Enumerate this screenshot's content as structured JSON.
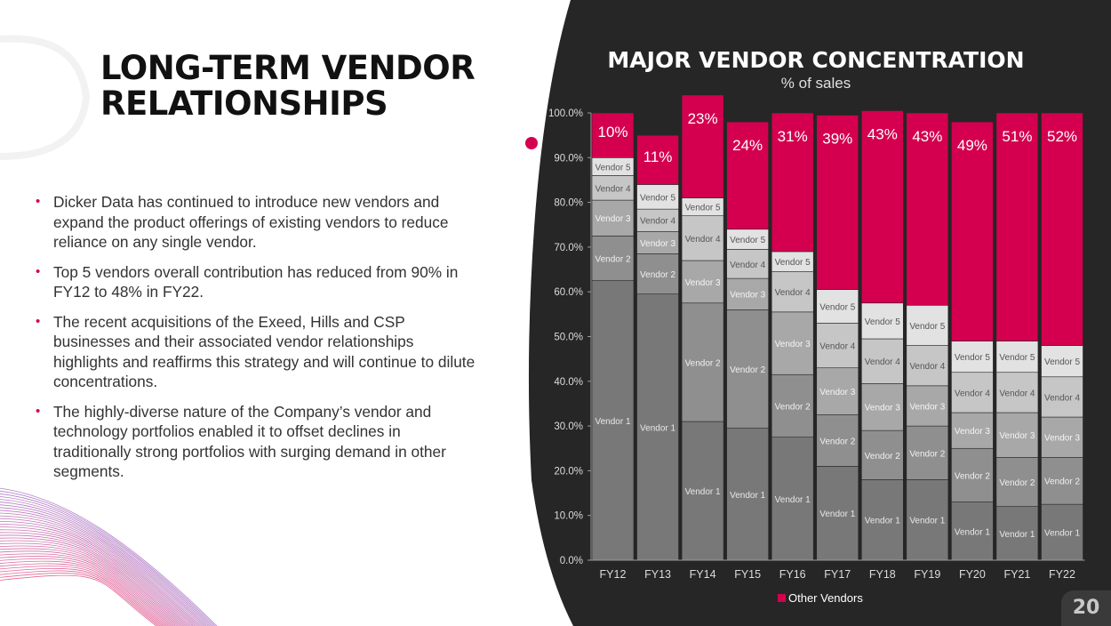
{
  "slide": {
    "title_lines": [
      "LONG-TERM VENDOR",
      "RELATIONSHIPS"
    ],
    "bullets": [
      "Dicker Data has continued to introduce new vendors and expand the product offerings of existing vendors to reduce reliance on any single vendor.",
      "Top 5 vendors overall contribution has reduced from 90% in FY12 to 48% in FY22.",
      "The recent acquisitions of the Exeed, Hills and CSP businesses and their associated vendor relationships highlights and reaffirms this strategy and will continue to dilute concentrations.",
      "The highly-diverse nature of the Company’s vendor and technology portfolios enabled it to offset declines in traditionally strong portfolios with surging demand in other segments."
    ],
    "bullet_symbol": "•",
    "page_number": "20",
    "accent_color": "#d4004f",
    "dark_panel_color": "#262626"
  },
  "chart_data": {
    "type": "bar",
    "stacked": true,
    "title": "MAJOR VENDOR CONCENTRATION",
    "subtitle": "% of sales",
    "categories": [
      "FY12",
      "FY13",
      "FY14",
      "FY15",
      "FY16",
      "FY17",
      "FY18",
      "FY19",
      "FY20",
      "FY21",
      "FY22"
    ],
    "ylim": [
      0,
      100
    ],
    "yticks": [
      "0.0%",
      "10.0%",
      "20.0%",
      "30.0%",
      "40.0%",
      "50.0%",
      "60.0%",
      "70.0%",
      "80.0%",
      "90.0%",
      "100.0%"
    ],
    "series": [
      {
        "name": "Vendor 1",
        "color": "#787878",
        "label_color": "#e8e8e8",
        "values": [
          62.5,
          59.5,
          31,
          29.5,
          27.5,
          21,
          18,
          18,
          13,
          12,
          12.5
        ]
      },
      {
        "name": "Vendor 2",
        "color": "#8f8f8f",
        "label_color": "#f0f0f0",
        "values": [
          10,
          9,
          26.5,
          26.5,
          14,
          11.5,
          11,
          12,
          12,
          11,
          10.5
        ]
      },
      {
        "name": "Vendor 3",
        "color": "#a8a8a8",
        "label_color": "#f5f5f5",
        "values": [
          8,
          5,
          9.5,
          7,
          14,
          10.5,
          10.5,
          9,
          8,
          10,
          9
        ]
      },
      {
        "name": "Vendor 4",
        "color": "#c6c6c6",
        "label_color": "#555555",
        "values": [
          5.5,
          5,
          10,
          6.5,
          9,
          10,
          10,
          9,
          9,
          9,
          9
        ]
      },
      {
        "name": "Vendor 5",
        "color": "#e2e2e2",
        "label_color": "#555555",
        "values": [
          4,
          5.5,
          4,
          4.5,
          4.5,
          7.5,
          8,
          9,
          7,
          7,
          7
        ]
      },
      {
        "name": "Other Vendors",
        "color": "#d4004f",
        "label_color": "#ffffff",
        "values": [
          10,
          11,
          23,
          24,
          31,
          39,
          43,
          43,
          49,
          51,
          52
        ],
        "data_labels": [
          "10%",
          "11%",
          "23%",
          "24%",
          "31%",
          "39%",
          "43%",
          "43%",
          "49%",
          "51%",
          "52%"
        ]
      }
    ],
    "legend": {
      "entries": [
        "Other Vendors"
      ],
      "placement": "bottom"
    },
    "grid": false
  }
}
